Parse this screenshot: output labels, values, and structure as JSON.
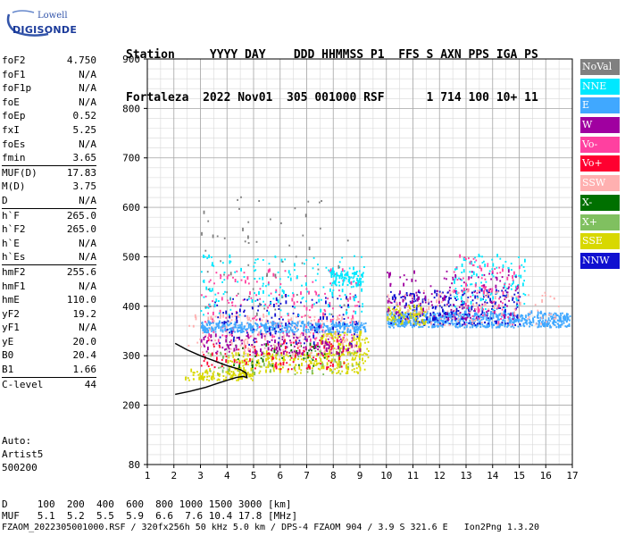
{
  "logo": {
    "line1": "Lowell",
    "line2": "DIGISONDE"
  },
  "header": {
    "line1": "Station     YYYY DAY    DDD HHMMSS P1  FFS S AXN PPS IGA PS",
    "line2": "Fortaleza  2022 Nov01  305 001000 RSF      1 714 100 10+ 11"
  },
  "params": [
    {
      "k": "foF2",
      "v": "4.750"
    },
    {
      "k": "foF1",
      "v": "N/A"
    },
    {
      "k": "foF1p",
      "v": "N/A"
    },
    {
      "k": "foE",
      "v": "N/A"
    },
    {
      "k": "foEp",
      "v": "0.52"
    },
    {
      "k": "fxI",
      "v": "5.25"
    },
    {
      "k": "foEs",
      "v": "N/A"
    },
    {
      "k": "fmin",
      "v": "3.65"
    },
    {
      "k": "MUF(D)",
      "v": "17.83",
      "sep": true
    },
    {
      "k": "M(D)",
      "v": "3.75"
    },
    {
      "k": "D",
      "v": "N/A"
    },
    {
      "k": "h`F",
      "v": "265.0",
      "sep": true
    },
    {
      "k": "h`F2",
      "v": "265.0"
    },
    {
      "k": "h`E",
      "v": "N/A"
    },
    {
      "k": "h`Es",
      "v": "N/A"
    },
    {
      "k": "hmF2",
      "v": "255.6",
      "sep": true
    },
    {
      "k": "hmF1",
      "v": "N/A"
    },
    {
      "k": "hmE",
      "v": "110.0"
    },
    {
      "k": "yF2",
      "v": "19.2"
    },
    {
      "k": "yF1",
      "v": "N/A"
    },
    {
      "k": "yE",
      "v": "20.0"
    },
    {
      "k": "B0",
      "v": "20.4"
    },
    {
      "k": "B1",
      "v": "1.66"
    },
    {
      "k": "C-level",
      "v": "44",
      "sep": true
    }
  ],
  "auto": {
    "line1": "Auto:",
    "line2": "Artist5",
    "line3": "500200"
  },
  "legend": [
    {
      "label": "NoVal",
      "color": "#808080"
    },
    {
      "label": "NNE",
      "color": "#00e8ff"
    },
    {
      "label": "E",
      "color": "#40a8ff"
    },
    {
      "label": "W",
      "color": "#a000a0"
    },
    {
      "label": "Vo-",
      "color": "#ff40a0"
    },
    {
      "label": "Vo+",
      "color": "#ff0030"
    },
    {
      "label": "SSW",
      "color": "#ffb0b0"
    },
    {
      "label": "X-",
      "color": "#007000"
    },
    {
      "label": "X+",
      "color": "#80c060"
    },
    {
      "label": "SSE",
      "color": "#d8d800"
    },
    {
      "label": "NNW",
      "color": "#1010d0"
    }
  ],
  "footer": {
    "line1": "D     100  200  400  600  800 1000 1500 3000 [km]",
    "line2": "MUF   5.1  5.2  5.5  5.9  6.6  7.6 10.4 17.8 [MHz]",
    "line3": "FZAOM_2022305001000.RSF / 320fx256h 50 kHz 5.0 km / DPS-4 FZAOM 904 / 3.9 S 321.6 E   Ion2Png 1.3.20"
  },
  "chart_data": {
    "type": "scatter",
    "xlim": [
      1,
      17
    ],
    "ylim": [
      80,
      900
    ],
    "x_ticks": [
      1,
      2,
      3,
      4,
      5,
      6,
      7,
      8,
      9,
      10,
      11,
      12,
      13,
      14,
      15,
      16,
      17
    ],
    "y_ticks": [
      80,
      200,
      300,
      400,
      500,
      600,
      700,
      800,
      900
    ],
    "y_minor_step": 20,
    "x_minor_step": 0.5,
    "grid": true,
    "legend_position": "right",
    "trace": {
      "color": "#000000",
      "x": [
        2.05,
        2.6,
        3.2,
        3.7,
        4.1,
        4.35,
        4.6,
        4.75,
        4.72,
        4.5,
        4.0,
        3.5,
        3.0,
        2.5,
        2.05
      ],
      "y": [
        222,
        228,
        236,
        245,
        252,
        256,
        258,
        256,
        265,
        272,
        280,
        290,
        300,
        312,
        325
      ]
    },
    "clusters": [
      {
        "series": "SSE",
        "x": [
          2.4,
          5.0
        ],
        "y": [
          248,
          268
        ],
        "n": 120
      },
      {
        "series": "SSE",
        "x": [
          4.0,
          9.3
        ],
        "y": [
          262,
          305
        ],
        "n": 260
      },
      {
        "series": "SSE",
        "x": [
          7.5,
          9.3
        ],
        "y": [
          300,
          345
        ],
        "n": 120
      },
      {
        "series": "X+",
        "x": [
          3.0,
          9.0
        ],
        "y": [
          260,
          310
        ],
        "n": 60
      },
      {
        "series": "Vo+",
        "x": [
          3.0,
          8.5
        ],
        "y": [
          270,
          330
        ],
        "n": 120
      },
      {
        "series": "X-",
        "x": [
          4.2,
          8.2
        ],
        "y": [
          275,
          320
        ],
        "n": 40
      },
      {
        "series": "SSW",
        "x": [
          2.5,
          9.0
        ],
        "y": [
          300,
          380
        ],
        "n": 220
      },
      {
        "series": "W",
        "x": [
          3.0,
          9.0
        ],
        "y": [
          300,
          340
        ],
        "n": 140
      },
      {
        "series": "Vo-",
        "x": [
          3.0,
          9.0
        ],
        "y": [
          320,
          470
        ],
        "n": 200
      },
      {
        "series": "E",
        "x": [
          3.0,
          9.2
        ],
        "y": [
          345,
          365
        ],
        "n": 360
      },
      {
        "series": "E",
        "x": [
          10.0,
          16.9
        ],
        "y": [
          355,
          385
        ],
        "n": 650
      },
      {
        "series": "NNW",
        "x": [
          3.5,
          9.0
        ],
        "y": [
          320,
          420
        ],
        "n": 120
      },
      {
        "series": "NNW",
        "x": [
          10.0,
          15.0
        ],
        "y": [
          360,
          430
        ],
        "n": 260
      },
      {
        "series": "NNE",
        "x": [
          3.0,
          9.2
        ],
        "y": [
          380,
          500
        ],
        "n": 160
      },
      {
        "series": "NNE",
        "x": [
          12.5,
          15.2
        ],
        "y": [
          390,
          500
        ],
        "n": 120
      },
      {
        "series": "SSE",
        "x": [
          10.0,
          11.5
        ],
        "y": [
          360,
          400
        ],
        "n": 80
      },
      {
        "series": "W",
        "x": [
          10.0,
          15.0
        ],
        "y": [
          370,
          470
        ],
        "n": 140
      },
      {
        "series": "NNE",
        "x": [
          7.8,
          9.1
        ],
        "y": [
          440,
          470
        ],
        "n": 90
      },
      {
        "series": "Vo-",
        "x": [
          12.5,
          15.0
        ],
        "y": [
          360,
          500
        ],
        "n": 90
      },
      {
        "series": "NoVal",
        "x": [
          3.0,
          9.0
        ],
        "y": [
          380,
          620
        ],
        "n": 60
      },
      {
        "series": "SSW",
        "x": [
          10.0,
          16.5
        ],
        "y": [
          360,
          430
        ],
        "n": 120
      }
    ]
  }
}
